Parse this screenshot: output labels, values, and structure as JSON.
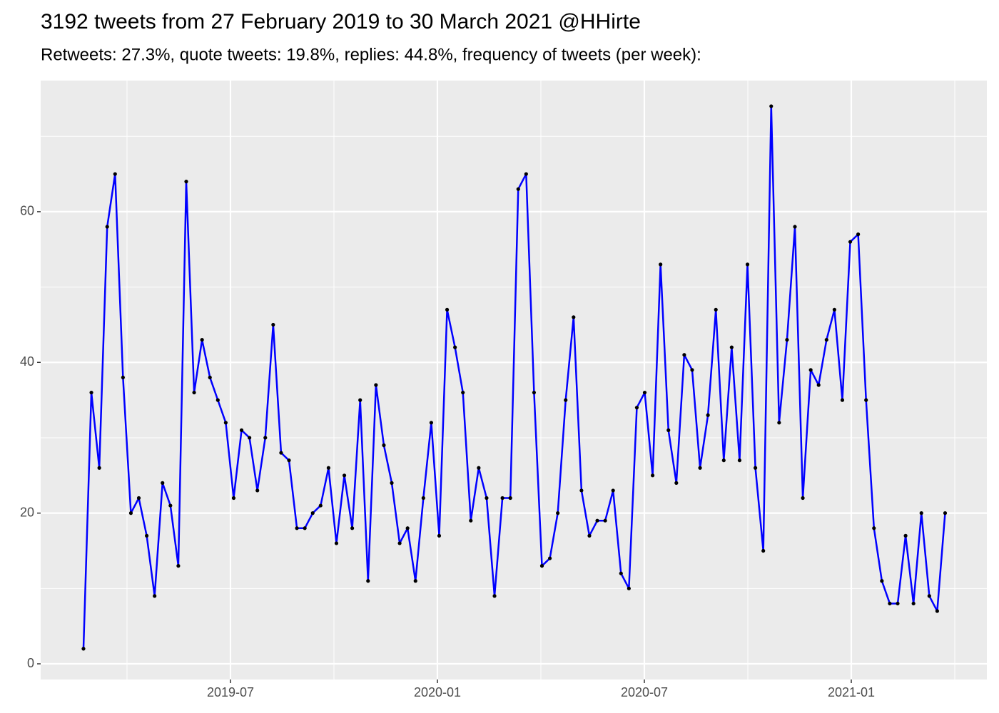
{
  "chart_data": {
    "type": "line",
    "title": "3192 tweets from 27 February 2019 to 30 March 2021 @HHirte",
    "subtitle": "Retweets: 27.3%, quote tweets: 19.8%, replies: 44.8%, frequency of tweets (per week):",
    "x": [
      2019.1448,
      2019.1639,
      2019.183,
      2019.2021,
      2019.2212,
      2019.2403,
      2019.2594,
      2019.2785,
      2019.2976,
      2019.3167,
      2019.3358,
      2019.3549,
      2019.374,
      2019.3931,
      2019.4122,
      2019.4313,
      2019.4504,
      2019.4695,
      2019.4886,
      2019.5077,
      2019.5268,
      2019.5459,
      2019.565,
      2019.5841,
      2019.6032,
      2019.6223,
      2019.6414,
      2019.6605,
      2019.6796,
      2019.6987,
      2019.7178,
      2019.7369,
      2019.756,
      2019.7751,
      2019.7942,
      2019.8133,
      2019.8324,
      2019.8515,
      2019.8706,
      2019.8897,
      2019.9088,
      2019.9279,
      2019.947,
      2019.9661,
      2019.9852,
      2020.0043,
      2020.0234,
      2020.0425,
      2020.0616,
      2020.0807,
      2020.0998,
      2020.1189,
      2020.138,
      2020.1571,
      2020.1762,
      2020.1953,
      2020.2144,
      2020.2335,
      2020.2526,
      2020.2717,
      2020.2908,
      2020.3099,
      2020.329,
      2020.3481,
      2020.3672,
      2020.3863,
      2020.4054,
      2020.4245,
      2020.4436,
      2020.4627,
      2020.4818,
      2020.5009,
      2020.52,
      2020.5391,
      2020.5582,
      2020.5773,
      2020.5964,
      2020.6155,
      2020.6346,
      2020.6537,
      2020.6728,
      2020.6919,
      2020.711,
      2020.7301,
      2020.7492,
      2020.7683,
      2020.7874,
      2020.8065,
      2020.8256,
      2020.8447,
      2020.8638,
      2020.8829,
      2020.902,
      2020.9211,
      2020.9402,
      2020.9593,
      2020.9784,
      2020.9975,
      2021.0166,
      2021.0357,
      2021.0548,
      2021.0739,
      2021.093,
      2021.1121,
      2021.1312,
      2021.1503,
      2021.1694,
      2021.1885,
      2021.2076,
      2021.2267
    ],
    "series": [
      {
        "color": "#0000ff",
        "point_color": "#000000",
        "values": [
          2,
          36,
          26,
          58,
          65,
          38,
          20,
          22,
          17,
          9,
          24,
          21,
          13,
          64,
          36,
          43,
          38,
          35,
          32,
          22,
          31,
          30,
          23,
          30,
          45,
          28,
          27,
          18,
          18,
          20,
          21,
          26,
          16,
          25,
          18,
          35,
          11,
          37,
          29,
          24,
          16,
          18,
          11,
          22,
          32,
          17,
          47,
          42,
          36,
          19,
          26,
          22,
          9,
          22,
          22,
          63,
          65,
          36,
          13,
          14,
          20,
          35,
          46,
          23,
          17,
          19,
          19,
          23,
          12,
          10,
          34,
          36,
          25,
          53,
          31,
          24,
          41,
          39,
          26,
          33,
          47,
          27,
          42,
          27,
          53,
          26,
          15,
          74,
          32,
          43,
          58,
          22,
          39,
          37,
          43,
          47,
          35,
          56,
          57,
          35,
          18,
          11,
          8,
          8,
          17,
          8,
          20,
          9,
          7,
          20
        ]
      }
    ],
    "xlim": [
      2019.0414,
      2021.3276
    ],
    "xticks": [
      {
        "value": 2019.5,
        "label": "2019-07"
      },
      {
        "value": 2020.0,
        "label": "2020-01"
      },
      {
        "value": 2020.5,
        "label": "2020-07"
      },
      {
        "value": 2021.0,
        "label": "2021-01"
      }
    ],
    "xminor": [
      2019.25,
      2019.75,
      2020.25,
      2020.75,
      2021.25
    ],
    "ylim": [
      -2.08,
      77.4
    ],
    "yticks": [
      0,
      20,
      40,
      60
    ],
    "yminor": [
      10,
      30,
      50,
      70
    ],
    "grid": true
  }
}
